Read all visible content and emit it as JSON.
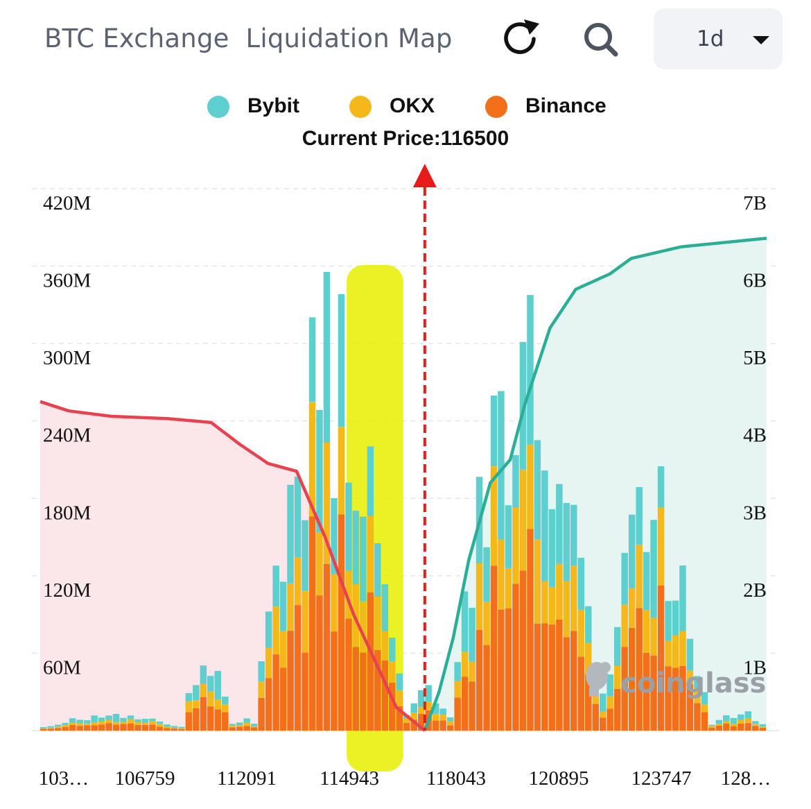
{
  "header": {
    "title": "BTC Exchange  Liquidation Map",
    "refresh_icon": "refresh-icon",
    "search_icon": "search-icon",
    "interval": "1d",
    "interval_icon": "caret-down-icon"
  },
  "watermark": "coinglass",
  "colors": {
    "bybit": "#5ecfcf",
    "okx": "#f4b81a",
    "binance": "#f36f1a",
    "short_cumulative": "#2aae96",
    "long_cumulative": "#e8414f",
    "current_price": "#e81b1b",
    "highlight": "#e6f000"
  },
  "chart_data": {
    "type": "bar",
    "stacked": true,
    "title": "BTC Exchange  Liquidation Map",
    "current_price_label": "Current Price:116500",
    "current_price": 116500,
    "legend": [
      "Bybit",
      "OKX",
      "Binance"
    ],
    "legend_position": "top-center",
    "x_tick_labels": [
      "103…",
      "106759",
      "112091",
      "114943",
      "118043",
      "120895",
      "123747",
      "128…"
    ],
    "y_left_ticks": [
      "420M",
      "360M",
      "300M",
      "240M",
      "180M",
      "120M",
      "60M"
    ],
    "y_left_range": [
      0,
      420
    ],
    "y_left_unit": "M",
    "y_right_ticks": [
      "7B",
      "6B",
      "5B",
      "4B",
      "3B",
      "2B",
      "1B"
    ],
    "y_right_range": [
      0,
      7
    ],
    "y_right_unit": "B",
    "grid": "horizontal dashed",
    "bar_count": 100,
    "bar_groups": [
      {
        "name": "long_sparse",
        "start": 0,
        "count": 20,
        "height_range": [
          2,
          14
        ]
      },
      {
        "name": "long_cluster_1",
        "start": 20,
        "count": 6,
        "height_range": [
          18,
          70
        ]
      },
      {
        "name": "long_gap",
        "start": 26,
        "count": 4,
        "height_range": [
          3,
          10
        ]
      },
      {
        "name": "long_cluster_2",
        "start": 30,
        "count": 20,
        "height_range": [
          30,
          360
        ]
      },
      {
        "name": "gap_near_price",
        "start": 50,
        "count": 7,
        "height_range": [
          5,
          40
        ]
      },
      {
        "name": "short_cluster_1",
        "start": 57,
        "count": 20,
        "height_range": [
          40,
          345
        ]
      },
      {
        "name": "short_cluster_2",
        "start": 77,
        "count": 15,
        "height_range": [
          15,
          210
        ]
      },
      {
        "name": "short_sparse",
        "start": 92,
        "count": 8,
        "height_range": [
          3,
          18
        ]
      }
    ],
    "long_cumulative_curve_B": [
      [
        103000,
        4.25
      ],
      [
        104000,
        4.13
      ],
      [
        105500,
        4.06
      ],
      [
        107500,
        4.03
      ],
      [
        109000,
        3.98
      ],
      [
        110000,
        3.7
      ],
      [
        111000,
        3.45
      ],
      [
        112000,
        3.35
      ],
      [
        113000,
        2.5
      ],
      [
        114000,
        1.5
      ],
      [
        114943,
        0.75
      ],
      [
        115500,
        0.3
      ],
      [
        116000,
        0.15
      ],
      [
        116500,
        0.0
      ]
    ],
    "short_cumulative_curve_B": [
      [
        116500,
        0.0
      ],
      [
        117000,
        0.5
      ],
      [
        117500,
        1.2
      ],
      [
        118043,
        2.2
      ],
      [
        118800,
        3.2
      ],
      [
        119500,
        3.5
      ],
      [
        120000,
        4.2
      ],
      [
        120895,
        5.2
      ],
      [
        121800,
        5.7
      ],
      [
        123000,
        5.9
      ],
      [
        123747,
        6.1
      ],
      [
        125500,
        6.25
      ],
      [
        128500,
        6.36
      ]
    ],
    "highlight_band_x": [
      114000,
      115500
    ]
  }
}
